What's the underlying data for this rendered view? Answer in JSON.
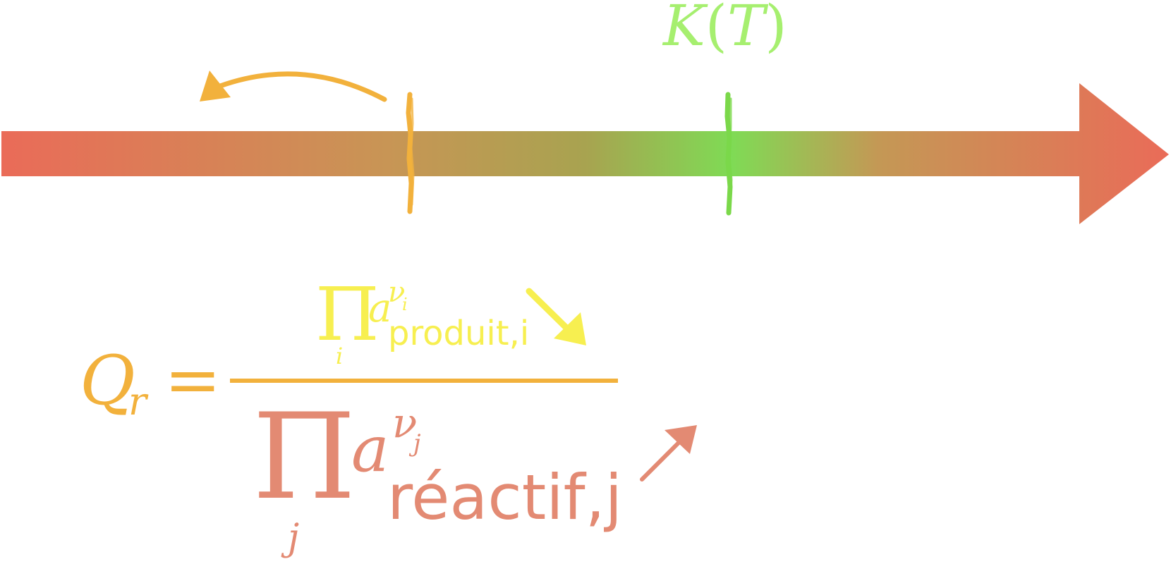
{
  "colors": {
    "axis_start": "#ea6b58",
    "axis_mid_q": "#c89555",
    "axis_k": "#7fdb55",
    "axis_end": "#ea6b58",
    "q_marker": "#f2b13c",
    "k_marker": "#7bd84a",
    "k_label": "#a6ef6f",
    "product": "#f7ef50",
    "fraction_bar": "#f2b13c",
    "reactant": "#e38a73",
    "q_label": "#f2b13c",
    "arrow_left": "#f2b13c",
    "arrow_down": "#f7ef50",
    "arrow_up": "#e38a73"
  },
  "k_label": {
    "k": "K",
    "open": "(",
    "t": "T",
    "close": ")"
  },
  "equation": {
    "q_letter": "Q",
    "q_sub": "r",
    "equals": "=",
    "product_symbol": "Π",
    "product_index": "i",
    "product_base": "a",
    "product_exp_nu": "ν",
    "product_exp_sub": "i",
    "product_subscript": "produit,i",
    "reactant_symbol": "Π",
    "reactant_index": "j",
    "reactant_base": "a",
    "reactant_exp_nu": "ν",
    "reactant_exp_sub": "j",
    "reactant_subscript": "réactif,j"
  },
  "icons": {
    "arrow_left": "curved-arrow-left-icon",
    "arrow_down": "arrow-down-right-icon",
    "arrow_up": "arrow-up-right-icon"
  }
}
